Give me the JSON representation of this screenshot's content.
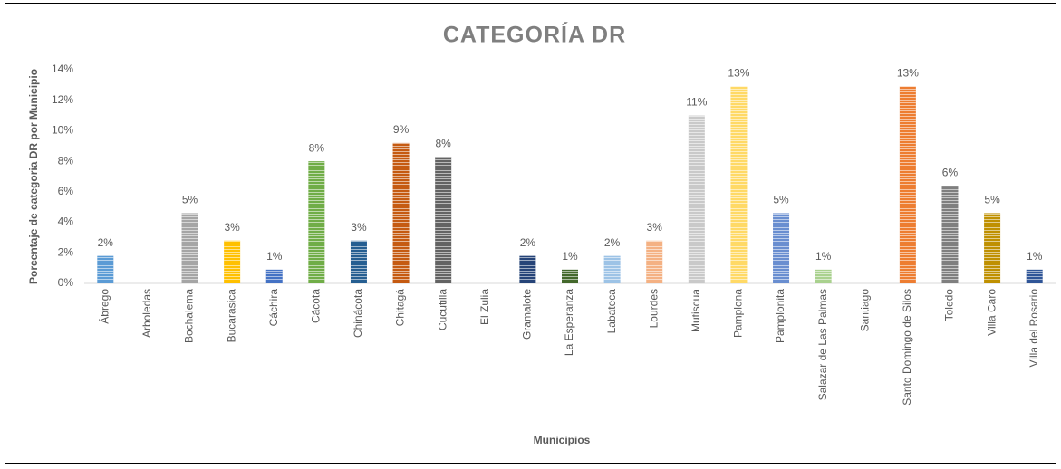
{
  "chart_data": {
    "type": "bar",
    "title": "CATEGORÍA DR",
    "x_label": "Municipios",
    "y_label": "Porcentaje de categoria DR por Municipio",
    "categories": [
      "Ábrego",
      "Arboledas",
      "Bochalema",
      "Bucarasica",
      "Cáchira",
      "Cácota",
      "Chinácota",
      "Chitagá",
      "Cucutilla",
      "El Zulia",
      "Gramalote",
      "La Esperanza",
      "Labateca",
      "Lourdes",
      "Mutiscua",
      "Pamplona",
      "Pamplonita",
      "Salazar de Las Palmas",
      "Santiago",
      "Santo Domingo de Silos",
      "Toledo",
      "Villa Caro",
      "Villa del Rosario"
    ],
    "values": [
      1.8,
      0,
      4.6,
      2.8,
      0.9,
      8.0,
      2.8,
      9.2,
      8.3,
      0,
      1.8,
      0.9,
      1.8,
      2.8,
      11.0,
      12.9,
      4.6,
      0.9,
      0,
      12.9,
      6.4,
      4.6,
      0.9
    ],
    "value_labels": [
      "2%",
      null,
      "5%",
      "3%",
      "1%",
      "8%",
      "3%",
      "9%",
      "8%",
      null,
      "2%",
      "1%",
      "2%",
      "3%",
      "11%",
      "13%",
      "5%",
      "1%",
      null,
      "13%",
      "6%",
      "5%",
      "1%"
    ],
    "colors": [
      "#5b9bd5",
      "#ed7d31",
      "#a5a5a5",
      "#ffc000",
      "#4472c4",
      "#70ad47",
      "#255e91",
      "#c55a11",
      "#636363",
      "#997300",
      "#264478",
      "#43682b",
      "#9dc3e6",
      "#f4b183",
      "#c9c9c9",
      "#ffd966",
      "#698ed0",
      "#a9d18e",
      "#f1975a",
      "#ed7d31",
      "#7f7f7f",
      "#bf9000",
      "#2f5597"
    ],
    "ylim": [
      0,
      14
    ],
    "yticks": [
      {
        "value": 0,
        "label": "0%"
      },
      {
        "value": 2,
        "label": "2%"
      },
      {
        "value": 4,
        "label": "4%"
      },
      {
        "value": 6,
        "label": "6%"
      },
      {
        "value": 8,
        "label": "8%"
      },
      {
        "value": 10,
        "label": "10%"
      },
      {
        "value": 12,
        "label": "12%"
      },
      {
        "value": 14,
        "label": "14%"
      }
    ],
    "grid": false
  }
}
